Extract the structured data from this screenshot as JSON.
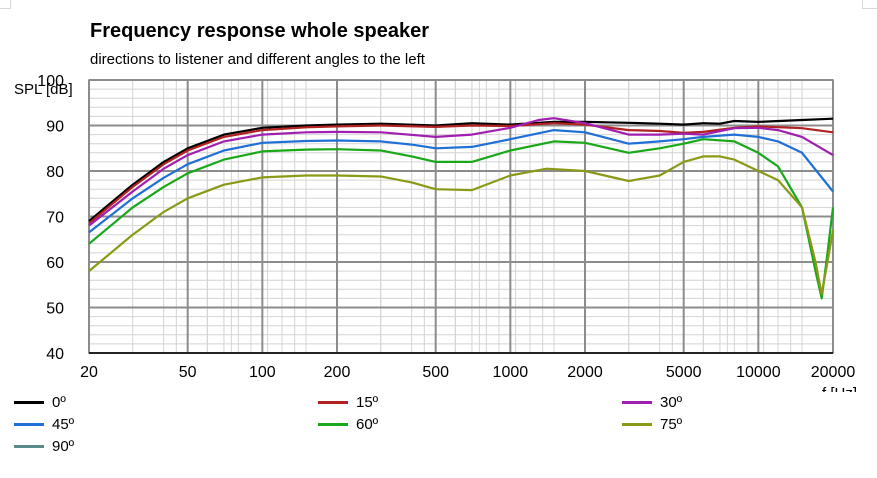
{
  "chart_data": {
    "type": "line",
    "title": "Frequency response whole speaker",
    "subtitle": "directions to listener and different angles to the left",
    "xlabel": "f [Hz]",
    "ylabel": "SPL [dB]",
    "xscale": "log",
    "xlim": [
      20,
      20000
    ],
    "ylim": [
      40,
      100
    ],
    "xticks": [
      20,
      50,
      100,
      200,
      500,
      1000,
      2000,
      5000,
      10000,
      20000
    ],
    "xtick_labels": [
      "20",
      "50",
      "100",
      "200",
      "500",
      "1000",
      "2000",
      "5000",
      "10000",
      "20000"
    ],
    "yticks": [
      40,
      50,
      60,
      70,
      80,
      90,
      100
    ],
    "ytick_labels": [
      "40",
      "50",
      "60",
      "70",
      "80",
      "90",
      "100"
    ],
    "grid": true,
    "legend_position": "bottom",
    "series": [
      {
        "name": "0º",
        "color": "#000000",
        "points": [
          [
            20,
            69
          ],
          [
            30,
            77
          ],
          [
            40,
            82
          ],
          [
            50,
            85
          ],
          [
            70,
            88
          ],
          [
            100,
            89.5
          ],
          [
            150,
            90
          ],
          [
            200,
            90.2
          ],
          [
            300,
            90.4
          ],
          [
            500,
            90
          ],
          [
            700,
            90.5
          ],
          [
            1000,
            90.2
          ],
          [
            1500,
            90.8
          ],
          [
            2000,
            90.8
          ],
          [
            3000,
            90.6
          ],
          [
            4000,
            90.4
          ],
          [
            5000,
            90.2
          ],
          [
            6000,
            90.5
          ],
          [
            7000,
            90.4
          ],
          [
            8000,
            91
          ],
          [
            10000,
            90.8
          ],
          [
            15000,
            91.2
          ],
          [
            20000,
            91.5
          ]
        ]
      },
      {
        "name": "15º",
        "color": "#b22222",
        "points": [
          [
            20,
            68.5
          ],
          [
            30,
            76.5
          ],
          [
            40,
            81.5
          ],
          [
            50,
            84.5
          ],
          [
            70,
            87.5
          ],
          [
            100,
            89
          ],
          [
            150,
            89.6
          ],
          [
            200,
            89.8
          ],
          [
            300,
            90
          ],
          [
            500,
            89.7
          ],
          [
            700,
            90
          ],
          [
            1000,
            89.9
          ],
          [
            1500,
            90.5
          ],
          [
            2000,
            90.2
          ],
          [
            3000,
            89
          ],
          [
            4000,
            88.8
          ],
          [
            5000,
            88.4
          ],
          [
            6000,
            88.6
          ],
          [
            8000,
            89.5
          ],
          [
            10000,
            89.8
          ],
          [
            15000,
            89.4
          ],
          [
            20000,
            88.5
          ]
        ]
      },
      {
        "name": "30º",
        "color": "#a01fb0",
        "points": [
          [
            20,
            68
          ],
          [
            30,
            75.5
          ],
          [
            40,
            80.5
          ],
          [
            50,
            83.5
          ],
          [
            70,
            86.5
          ],
          [
            100,
            88
          ],
          [
            150,
            88.5
          ],
          [
            200,
            88.6
          ],
          [
            300,
            88.5
          ],
          [
            500,
            87.5
          ],
          [
            700,
            88
          ],
          [
            1000,
            89.5
          ],
          [
            1300,
            91.2
          ],
          [
            1500,
            91.6
          ],
          [
            2000,
            90.5
          ],
          [
            3000,
            88
          ],
          [
            4000,
            88
          ],
          [
            5000,
            88.2
          ],
          [
            6000,
            88
          ],
          [
            8000,
            89.4
          ],
          [
            10000,
            89.5
          ],
          [
            12000,
            89
          ],
          [
            15000,
            87.5
          ],
          [
            20000,
            83.5
          ]
        ]
      },
      {
        "name": "45º",
        "color": "#1f6fd6",
        "points": [
          [
            20,
            66.5
          ],
          [
            30,
            74
          ],
          [
            40,
            78.5
          ],
          [
            50,
            81.5
          ],
          [
            70,
            84.5
          ],
          [
            100,
            86.2
          ],
          [
            150,
            86.6
          ],
          [
            200,
            86.7
          ],
          [
            300,
            86.5
          ],
          [
            400,
            85.8
          ],
          [
            500,
            85
          ],
          [
            700,
            85.3
          ],
          [
            1000,
            87
          ],
          [
            1500,
            89
          ],
          [
            2000,
            88.5
          ],
          [
            3000,
            86
          ],
          [
            4000,
            86.5
          ],
          [
            5000,
            87
          ],
          [
            6000,
            87.5
          ],
          [
            8000,
            88
          ],
          [
            10000,
            87.5
          ],
          [
            12000,
            86.5
          ],
          [
            15000,
            84
          ],
          [
            20000,
            75.5
          ]
        ]
      },
      {
        "name": "60º",
        "color": "#1aa81a",
        "points": [
          [
            20,
            64
          ],
          [
            30,
            72
          ],
          [
            40,
            76.5
          ],
          [
            50,
            79.5
          ],
          [
            70,
            82.5
          ],
          [
            100,
            84.3
          ],
          [
            150,
            84.7
          ],
          [
            200,
            84.8
          ],
          [
            300,
            84.5
          ],
          [
            400,
            83.2
          ],
          [
            500,
            82
          ],
          [
            700,
            82
          ],
          [
            1000,
            84.5
          ],
          [
            1500,
            86.5
          ],
          [
            2000,
            86.2
          ],
          [
            3000,
            84
          ],
          [
            4000,
            85
          ],
          [
            5000,
            86
          ],
          [
            6000,
            87
          ],
          [
            8000,
            86.5
          ],
          [
            10000,
            84
          ],
          [
            12000,
            81
          ],
          [
            15000,
            72
          ],
          [
            17000,
            58
          ],
          [
            18000,
            52
          ],
          [
            19000,
            62
          ],
          [
            20000,
            72
          ]
        ]
      },
      {
        "name": "75º",
        "color": "#8a9a17",
        "points": [
          [
            20,
            58
          ],
          [
            30,
            66
          ],
          [
            40,
            71
          ],
          [
            50,
            74
          ],
          [
            70,
            77
          ],
          [
            100,
            78.6
          ],
          [
            150,
            79
          ],
          [
            200,
            79
          ],
          [
            300,
            78.8
          ],
          [
            400,
            77.5
          ],
          [
            500,
            76
          ],
          [
            700,
            75.8
          ],
          [
            1000,
            79
          ],
          [
            1400,
            80.5
          ],
          [
            2000,
            80
          ],
          [
            3000,
            77.8
          ],
          [
            4000,
            79
          ],
          [
            5000,
            82
          ],
          [
            6000,
            83.2
          ],
          [
            7000,
            83.2
          ],
          [
            8000,
            82.5
          ],
          [
            10000,
            80
          ],
          [
            12000,
            78
          ],
          [
            15000,
            72
          ],
          [
            17000,
            60
          ],
          [
            18000,
            53
          ],
          [
            19000,
            60
          ],
          [
            20000,
            67
          ]
        ]
      },
      {
        "name": "90º",
        "color": "#5a8a8a",
        "points": []
      }
    ]
  }
}
